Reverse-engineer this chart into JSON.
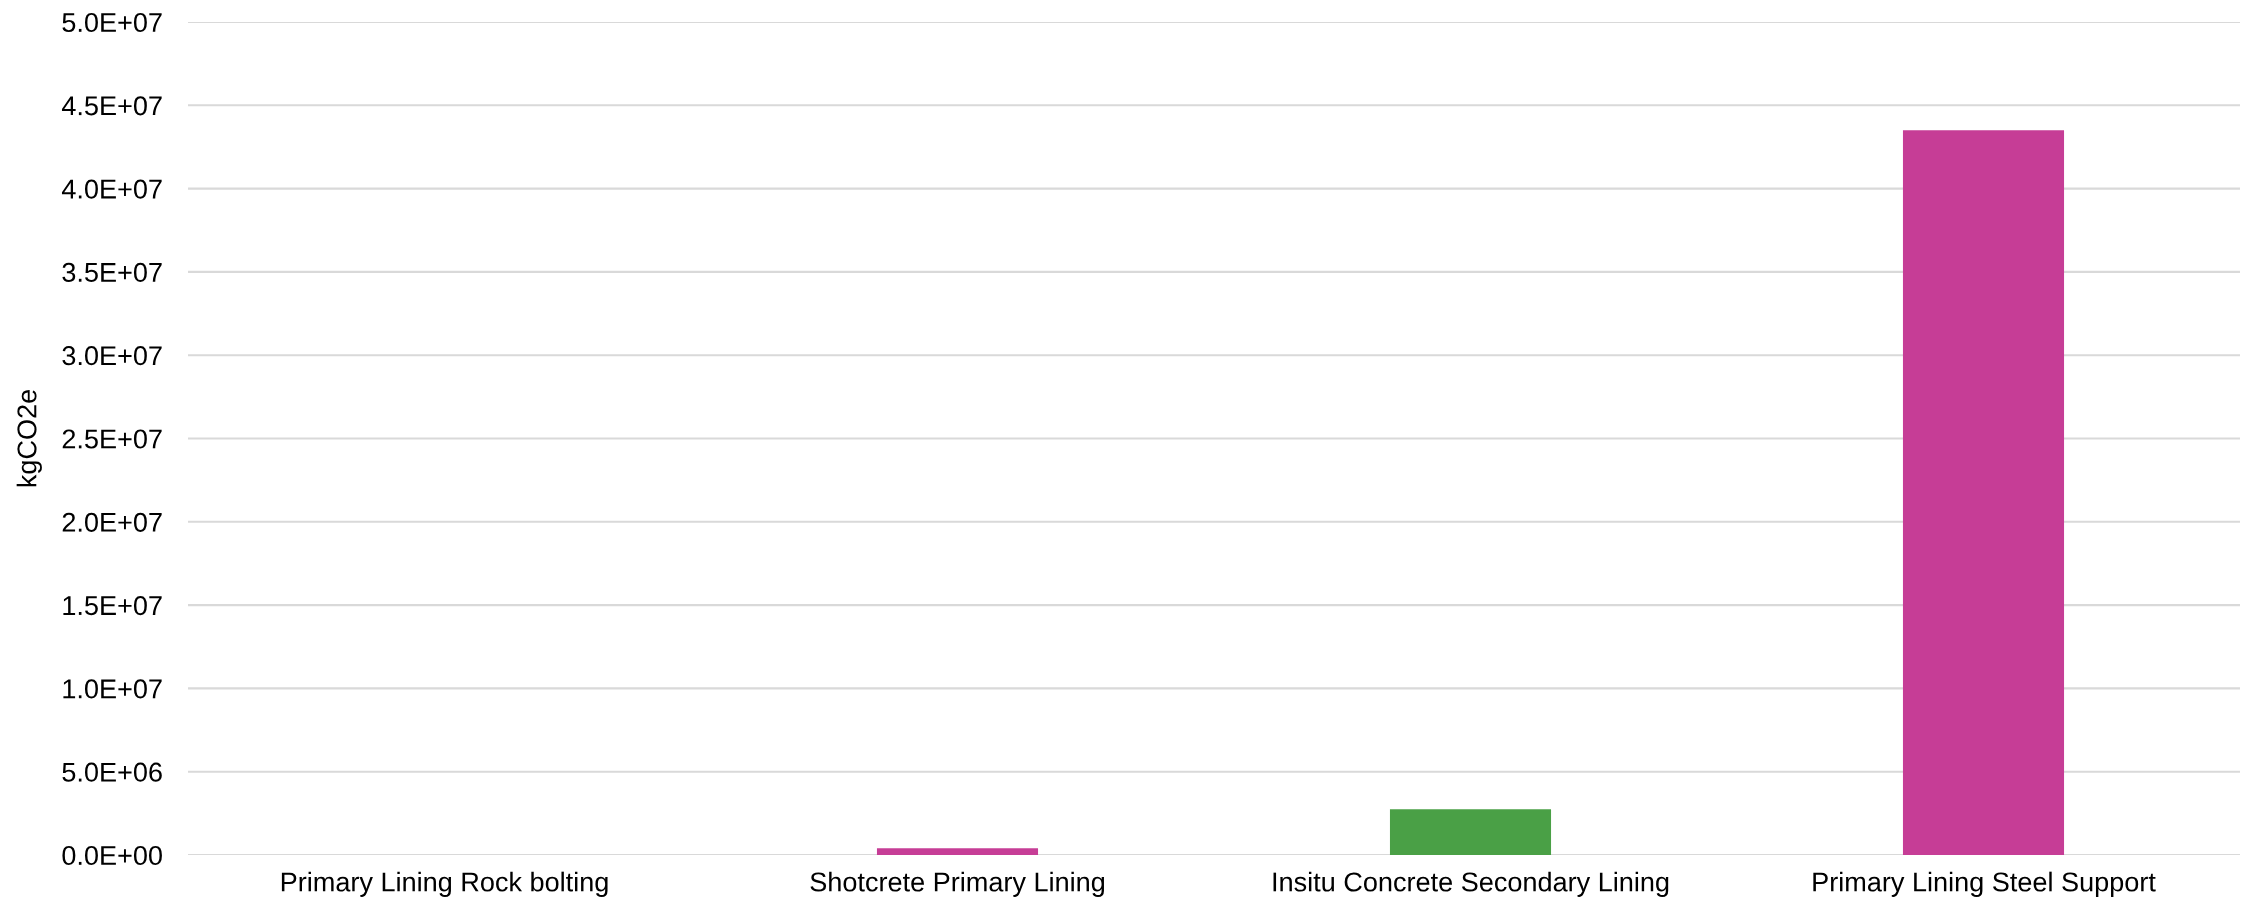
{
  "chart_data": {
    "type": "bar",
    "ylabel": "kgCO2e",
    "categories": [
      "Primary Lining Rock bolting",
      "Shotcrete Primary Lining",
      "Insitu Concrete Secondary Lining",
      "Primary Lining Steel Support"
    ],
    "values": [
      0,
      400000,
      2750000,
      43500000
    ],
    "colors": [
      "#c63d96",
      "#c63d96",
      "#4aa046",
      "#c63d96"
    ],
    "ylim": [
      0,
      50000000
    ],
    "yticks": [
      {
        "value": 0,
        "label": "0.0E+00"
      },
      {
        "value": 5000000,
        "label": "5.0E+06"
      },
      {
        "value": 10000000,
        "label": "1.0E+07"
      },
      {
        "value": 15000000,
        "label": "1.5E+07"
      },
      {
        "value": 20000000,
        "label": "2.0E+07"
      },
      {
        "value": 25000000,
        "label": "2.5E+07"
      },
      {
        "value": 30000000,
        "label": "3.0E+07"
      },
      {
        "value": 35000000,
        "label": "3.5E+07"
      },
      {
        "value": 40000000,
        "label": "4.0E+07"
      },
      {
        "value": 45000000,
        "label": "4.5E+07"
      },
      {
        "value": 50000000,
        "label": "5.0E+07"
      }
    ],
    "grid": "y"
  }
}
